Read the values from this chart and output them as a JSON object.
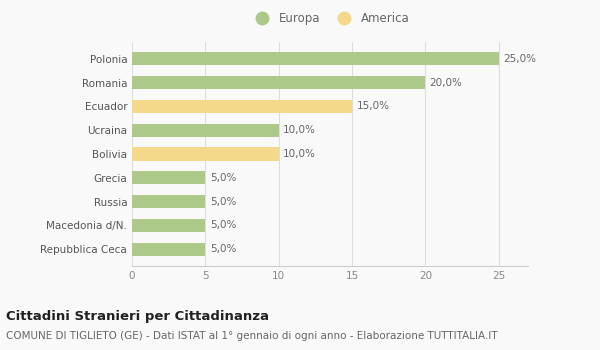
{
  "categories": [
    "Repubblica Ceca",
    "Macedonia d/N.",
    "Russia",
    "Grecia",
    "Bolivia",
    "Ucraina",
    "Ecuador",
    "Romania",
    "Polonia"
  ],
  "values": [
    5.0,
    5.0,
    5.0,
    5.0,
    10.0,
    10.0,
    15.0,
    20.0,
    25.0
  ],
  "colors": [
    "#adc98a",
    "#adc98a",
    "#adc98a",
    "#adc98a",
    "#f5d98a",
    "#adc98a",
    "#f5d98a",
    "#adc98a",
    "#adc98a"
  ],
  "bar_labels": [
    "5,0%",
    "5,0%",
    "5,0%",
    "5,0%",
    "10,0%",
    "10,0%",
    "15,0%",
    "20,0%",
    "25,0%"
  ],
  "legend_labels": [
    "Europa",
    "America"
  ],
  "legend_colors": [
    "#adc98a",
    "#f5d98a"
  ],
  "xlim": [
    0,
    27
  ],
  "xticks": [
    0,
    5,
    10,
    15,
    20,
    25
  ],
  "title": "Cittadini Stranieri per Cittadinanza",
  "subtitle": "COMUNE DI TIGLIETO (GE) - Dati ISTAT al 1° gennaio di ogni anno - Elaborazione TUTTITALIA.IT",
  "title_fontsize": 9.5,
  "subtitle_fontsize": 7.5,
  "label_fontsize": 7.5,
  "tick_fontsize": 7.5,
  "legend_fontsize": 8.5,
  "bg_color": "#f9f9f9"
}
